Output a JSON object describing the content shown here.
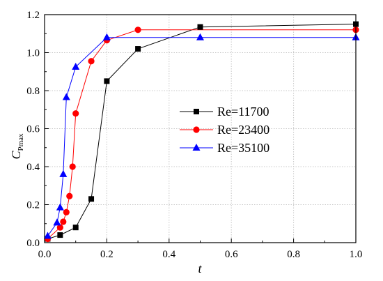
{
  "chart_data": {
    "type": "line",
    "title": "",
    "xlabel": "t",
    "ylabel": "C",
    "ylabel_sub": "Pmax",
    "xlim": [
      0.0,
      1.0
    ],
    "ylim": [
      0.0,
      1.2
    ],
    "xticks": [
      "0.0",
      "0.2",
      "0.4",
      "0.6",
      "0.8",
      "1.0"
    ],
    "yticks": [
      "0.0",
      "0.2",
      "0.4",
      "0.6",
      "0.8",
      "1.0",
      "1.2"
    ],
    "grid": true,
    "legend_position": "center-right",
    "series": [
      {
        "name": "Re=11700",
        "color": "#000000",
        "marker": "square",
        "x": [
          0.01,
          0.05,
          0.1,
          0.15,
          0.2,
          0.3,
          0.5,
          1.0
        ],
        "y": [
          0.02,
          0.04,
          0.08,
          0.23,
          0.85,
          1.02,
          1.135,
          1.15
        ]
      },
      {
        "name": "Re=23400",
        "color": "#ff0000",
        "marker": "circle",
        "x": [
          0.01,
          0.05,
          0.06,
          0.07,
          0.08,
          0.09,
          0.1,
          0.15,
          0.2,
          0.3,
          1.0
        ],
        "y": [
          0.02,
          0.08,
          0.11,
          0.16,
          0.245,
          0.4,
          0.68,
          0.955,
          1.065,
          1.12,
          1.12
        ]
      },
      {
        "name": "Re=35100",
        "color": "#0000ff",
        "marker": "triangle",
        "x": [
          0.01,
          0.04,
          0.05,
          0.06,
          0.07,
          0.1,
          0.2,
          0.5,
          1.0
        ],
        "y": [
          0.035,
          0.105,
          0.185,
          0.36,
          0.765,
          0.925,
          1.08,
          1.08,
          1.08
        ]
      }
    ]
  }
}
